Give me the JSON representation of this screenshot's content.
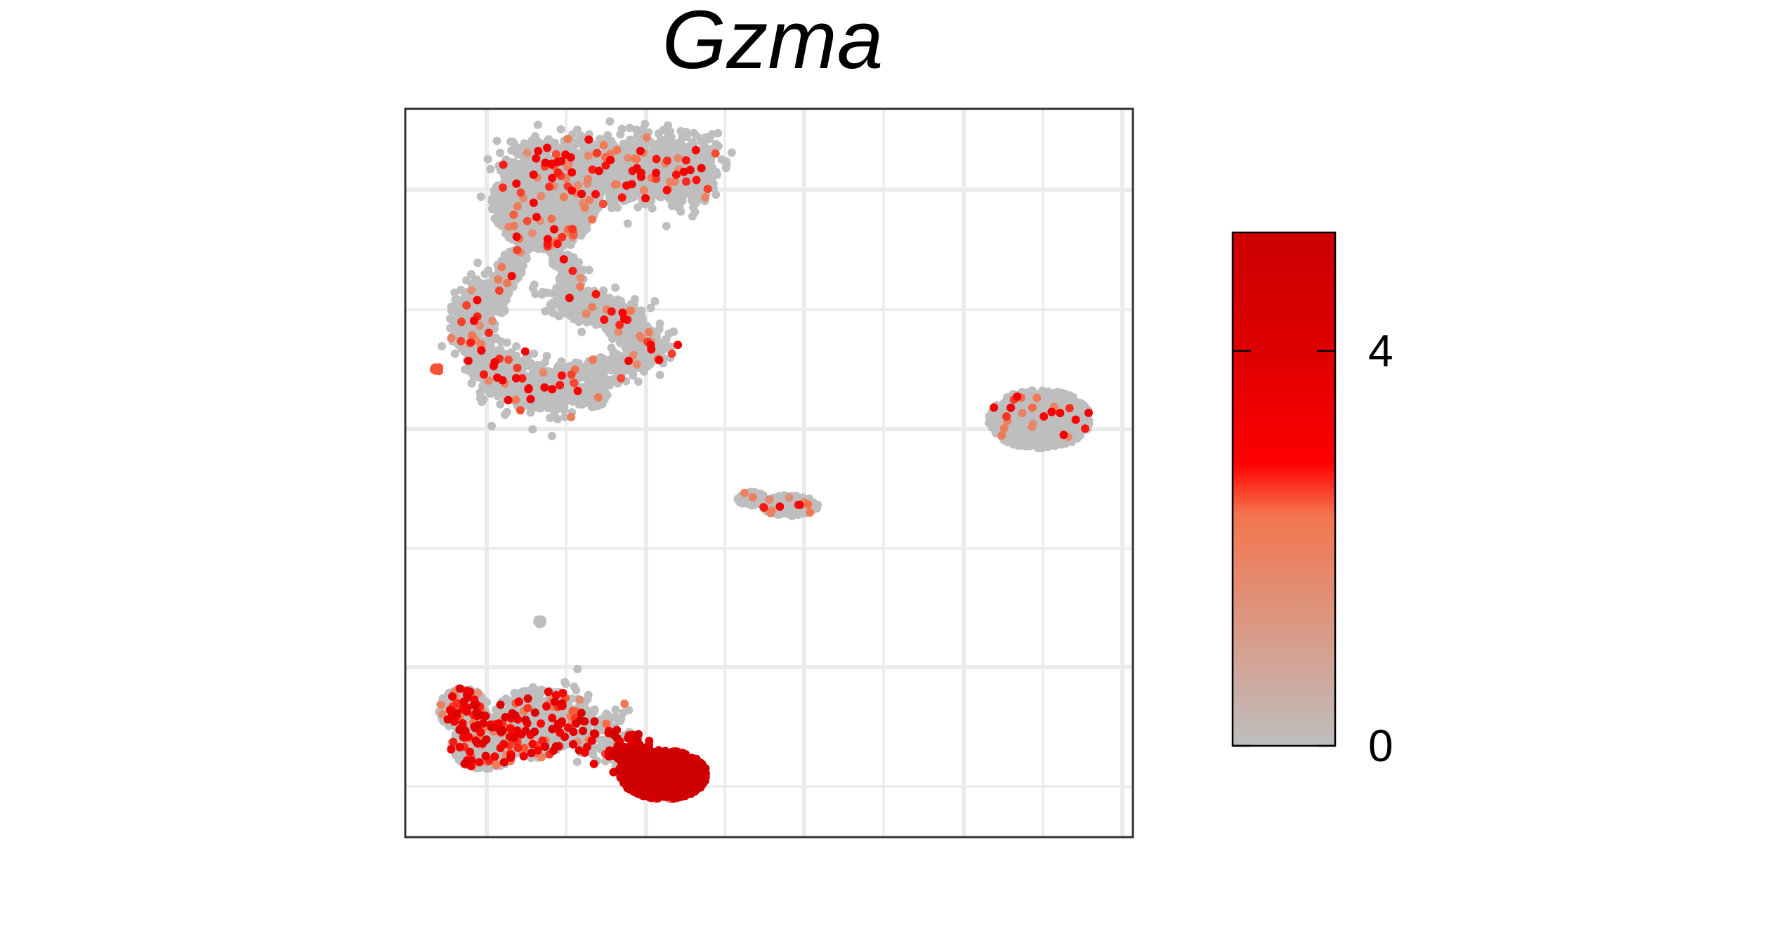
{
  "chart_data": {
    "type": "scatter",
    "title": "Gzma",
    "xlabel": "",
    "ylabel": "",
    "grid": true,
    "axes_tick_labels_shown": false,
    "colorbar": {
      "colors": [
        "#bebebe",
        "#f4754e",
        "#ff0000",
        "#e00000",
        "#cc0000"
      ],
      "stops": [
        0,
        0.45,
        0.55,
        0.75,
        1
      ],
      "range": [
        0,
        5.2
      ],
      "ticks": [
        {
          "value": 0,
          "label": "0"
        },
        {
          "value": 4,
          "label": "4"
        }
      ],
      "placement": "right"
    },
    "clusters": [
      {
        "id": "top-left-large",
        "expression": "low",
        "approx_center": [
          -6.5,
          8.5
        ]
      },
      {
        "id": "top-left-ring",
        "expression": "low",
        "approx_center": [
          -6.8,
          4.5
        ]
      },
      {
        "id": "small-left-outlier",
        "expression": "medium",
        "approx_center": [
          -9.5,
          3.5
        ]
      },
      {
        "id": "middle-small",
        "expression": "low",
        "approx_center": [
          -1,
          -0.5
        ]
      },
      {
        "id": "right-small",
        "expression": "low",
        "approx_center": [
          8.5,
          1.5
        ]
      },
      {
        "id": "bottom-left",
        "expression": "medium",
        "approx_center": [
          -7.2,
          -8.5
        ]
      },
      {
        "id": "bottom-red",
        "expression": "high",
        "approx_center": [
          -3.2,
          -9.5
        ]
      }
    ]
  }
}
